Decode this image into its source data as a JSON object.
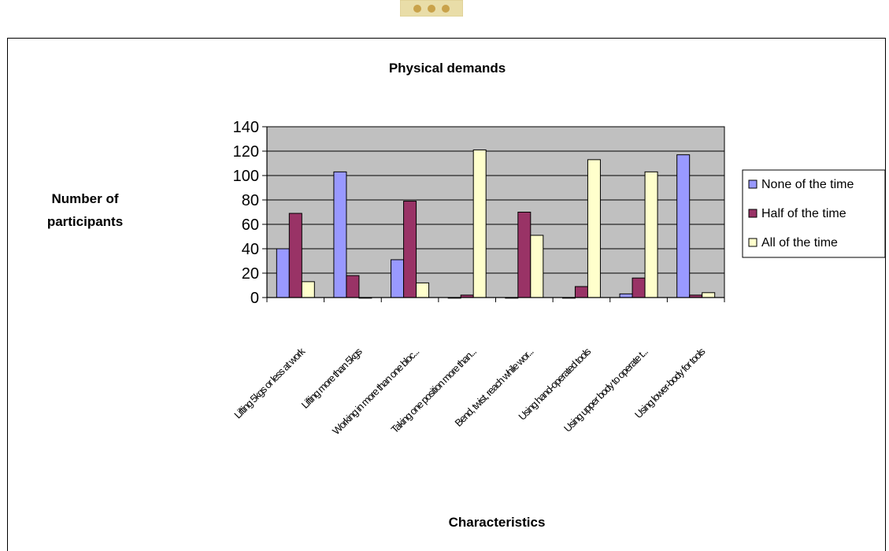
{
  "colors": {
    "none": "#9999FF",
    "half": "#993366",
    "all": "#FFFFCC",
    "plot_bg": "#C0C0C0"
  },
  "chart_data": {
    "type": "bar",
    "title": "Physical demands",
    "xlabel": "Characteristics",
    "ylabel_line1": "Number of",
    "ylabel_line2": "participants",
    "ylim": [
      0,
      140
    ],
    "yticks": [
      0,
      20,
      40,
      60,
      80,
      100,
      120,
      140
    ],
    "grid": true,
    "legend_position": "right",
    "categories": [
      "Lifting 5kgs or less at work",
      "Lifting more than 5kgs",
      "Working in more than one bloc...",
      "Taking one position more than...",
      "Bend, twist, reach while wor...",
      "Using hand-operated tools",
      "Using upper body to operate t...",
      "Using lower-body for tools"
    ],
    "series": [
      {
        "name": "None of the time",
        "values": [
          40,
          103,
          31,
          0,
          0,
          0,
          3,
          117
        ]
      },
      {
        "name": "Half of the time",
        "values": [
          69,
          18,
          79,
          2,
          70,
          9,
          16,
          2
        ]
      },
      {
        "name": "All of the time",
        "values": [
          13,
          0,
          12,
          121,
          51,
          113,
          103,
          4
        ]
      }
    ]
  }
}
